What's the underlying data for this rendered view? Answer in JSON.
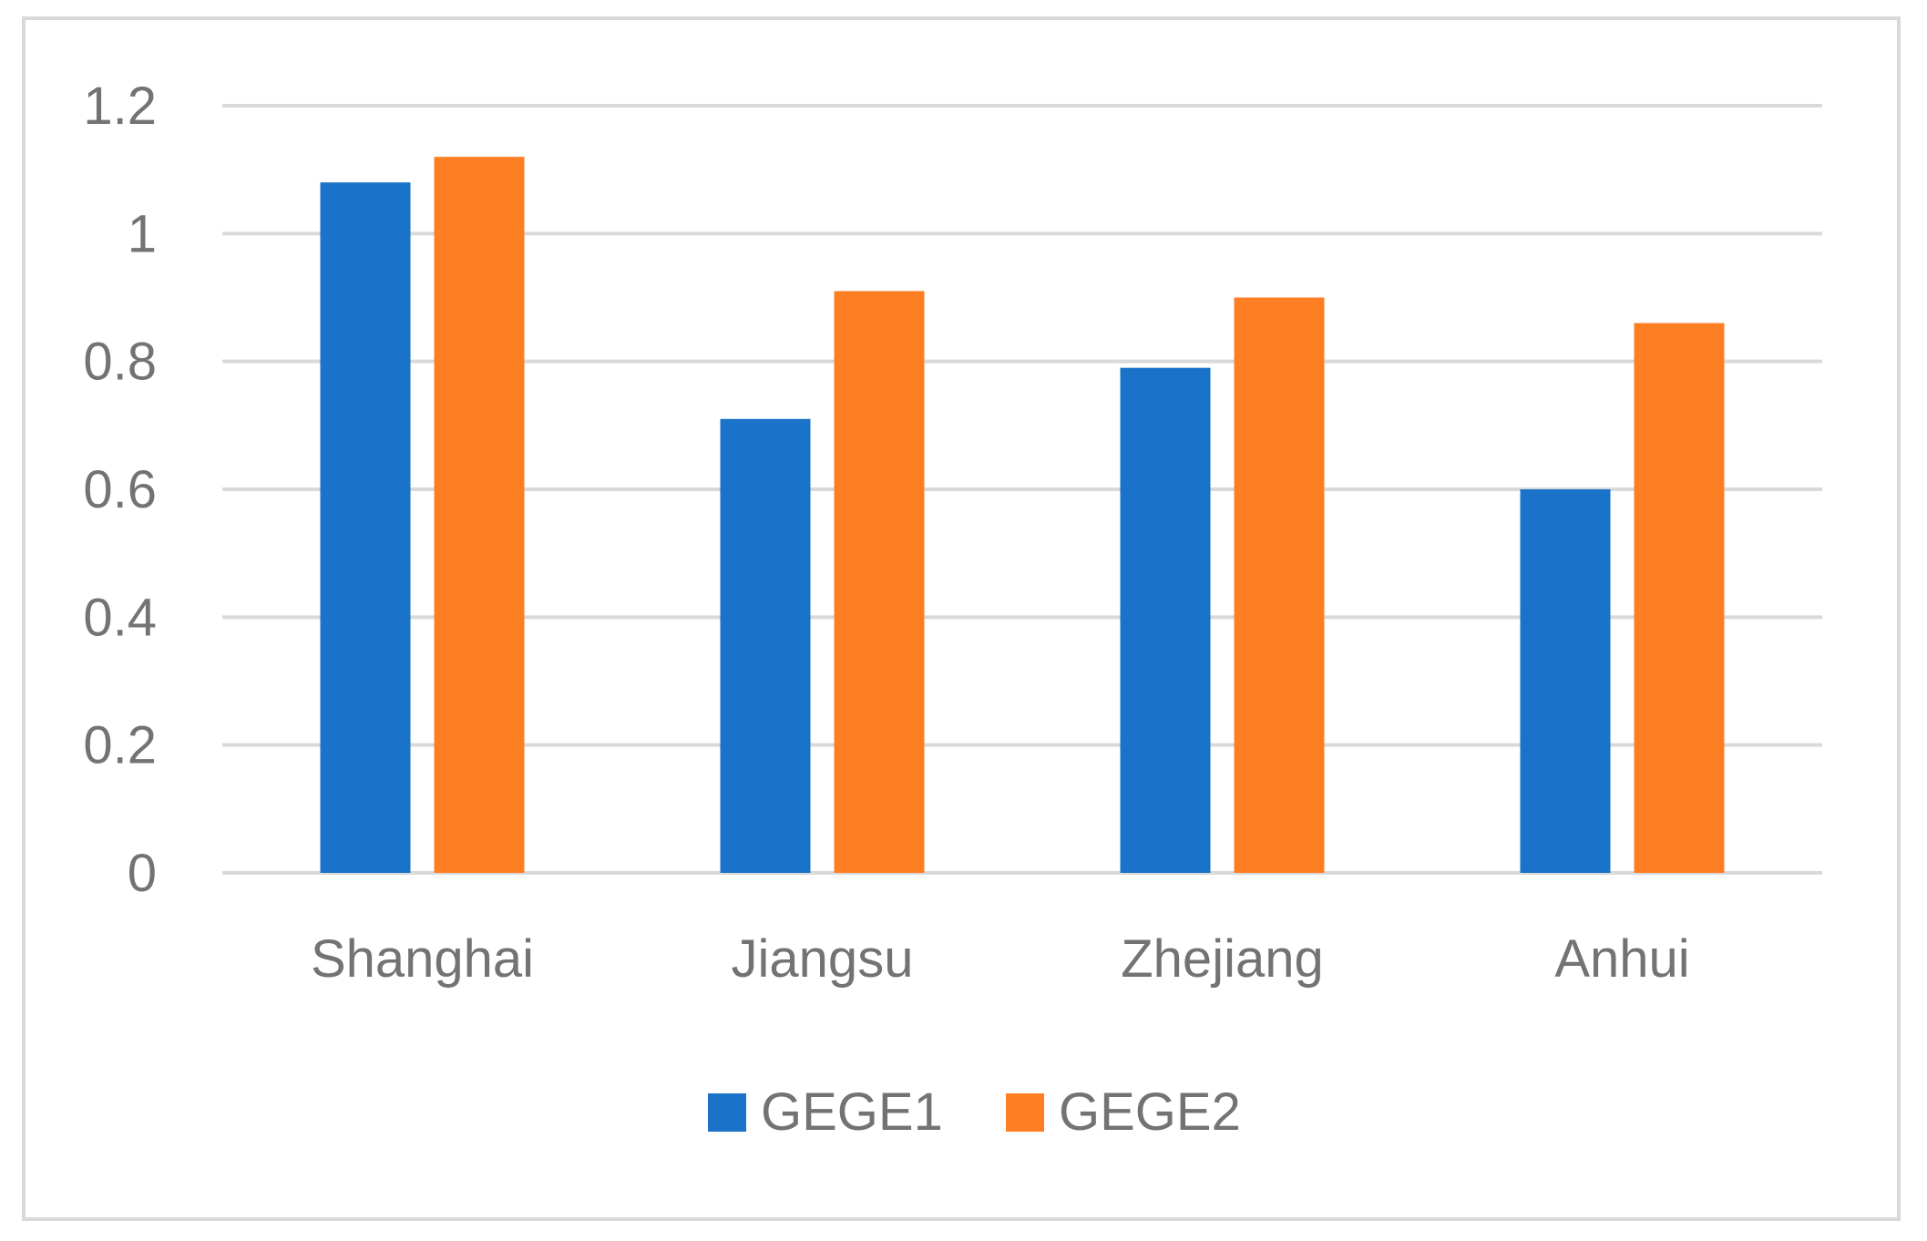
{
  "chart_data": {
    "type": "bar",
    "categories": [
      "Shanghai",
      "Jiangsu",
      "Zhejiang",
      "Anhui"
    ],
    "series": [
      {
        "name": "GEGE1",
        "color": "#1a73c8",
        "values": [
          1.08,
          0.71,
          0.79,
          0.6
        ]
      },
      {
        "name": "GEGE2",
        "color": "#fe7f23",
        "values": [
          1.12,
          0.91,
          0.9,
          0.86
        ]
      }
    ],
    "y_ticks": [
      "0",
      "0.2",
      "0.4",
      "0.6",
      "0.8",
      "1",
      "1.2"
    ],
    "ylim": [
      0,
      1.2
    ],
    "title": "",
    "xlabel": "",
    "ylabel": "",
    "grid": true,
    "gridline_color": "#d9d9d9",
    "legend_position": "bottom",
    "label_color": "#737373"
  }
}
